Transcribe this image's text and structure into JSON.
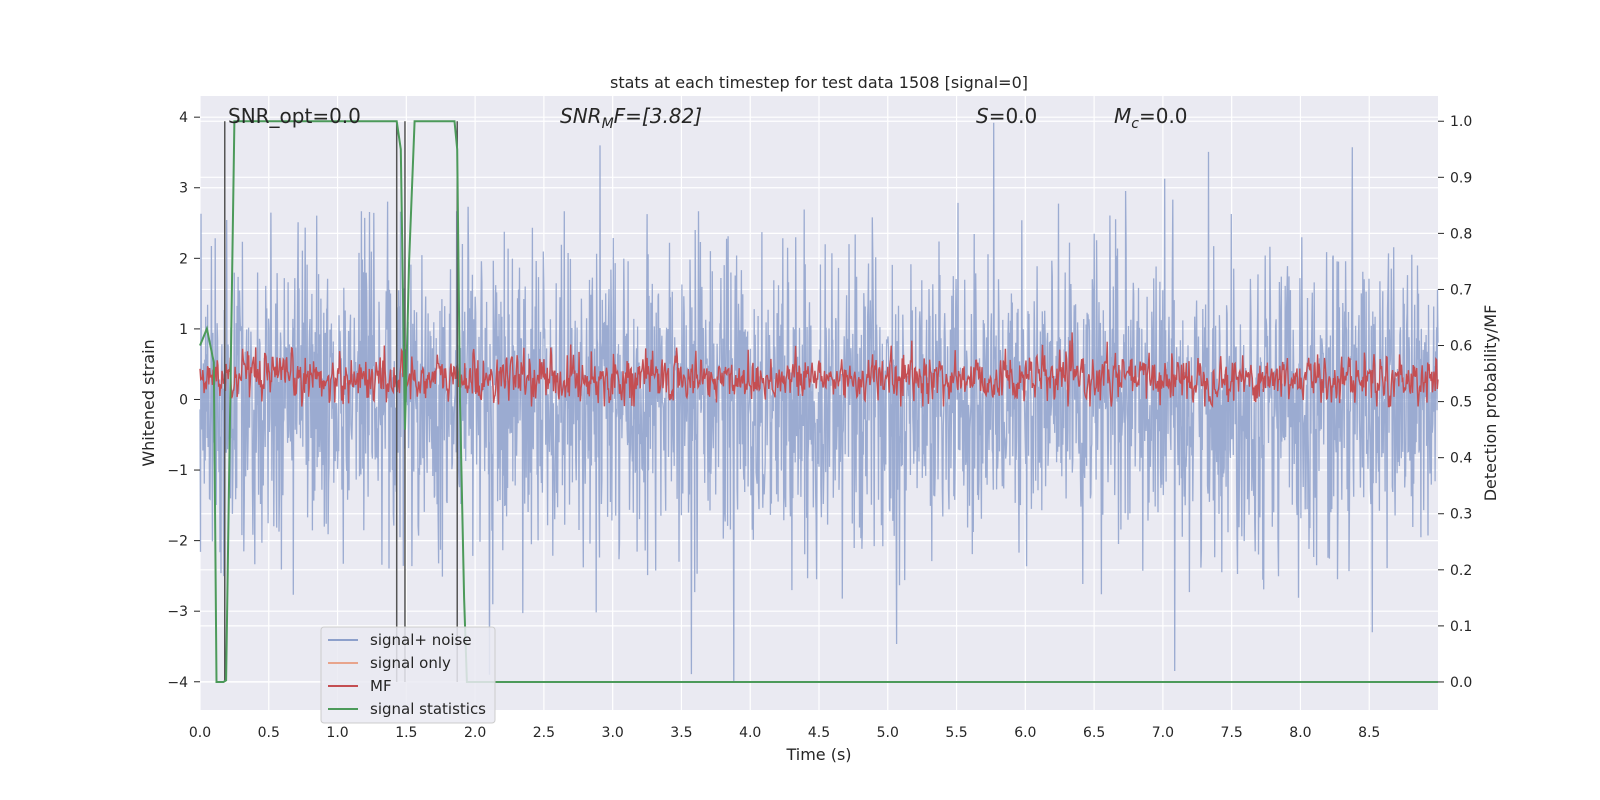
{
  "chart_data": {
    "type": "line",
    "title": "stats at each timestep for test data 1508 [signal=0]",
    "xlabel": "Time (s)",
    "ylabel_left": "Whitened strain",
    "ylabel_right": "Detection probability/MF",
    "xlim": [
      0,
      9.0
    ],
    "ylim_left": [
      -4.4,
      4.3
    ],
    "ylim_right": [
      -0.05,
      1.045
    ],
    "x_ticks": [
      "0.0",
      "0.5",
      "1.0",
      "1.5",
      "2.0",
      "2.5",
      "3.0",
      "3.5",
      "4.0",
      "4.5",
      "5.0",
      "5.5",
      "6.0",
      "6.5",
      "7.0",
      "7.5",
      "8.0",
      "8.5"
    ],
    "x_tick_values": [
      0,
      0.5,
      1.0,
      1.5,
      2.0,
      2.5,
      3.0,
      3.5,
      4.0,
      4.5,
      5.0,
      5.5,
      6.0,
      6.5,
      7.0,
      7.5,
      8.0,
      8.5
    ],
    "y_ticks_left": [
      "4",
      "3",
      "2",
      "1",
      "0",
      "−1",
      "−2",
      "−3",
      "−4"
    ],
    "y_tick_values_left": [
      4,
      3,
      2,
      1,
      0,
      -1,
      -2,
      -3,
      -4
    ],
    "y_ticks_right": [
      "1.0",
      "0.9",
      "0.8",
      "0.7",
      "0.6",
      "0.5",
      "0.4",
      "0.3",
      "0.2",
      "0.1",
      "0.0"
    ],
    "y_tick_values_right": [
      1.0,
      0.9,
      0.8,
      0.7,
      0.6,
      0.5,
      0.4,
      0.3,
      0.2,
      0.1,
      0.0
    ],
    "grid": true,
    "legend_position": "lower-left",
    "annotations": {
      "snr_opt": "SNR_opt=0.0",
      "snr_mf_base": "SNR",
      "snr_mf_sub": "M",
      "snr_mf_rest": "F=[3.82]",
      "s_italic": "S",
      "s_rest": "=0.0",
      "mc_italic": "M",
      "mc_sub": "c",
      "mc_rest": "=0.0"
    },
    "series": [
      {
        "name": "signal+ noise",
        "color": "#8da0cb",
        "noise_amplitude": 1.0,
        "extremes": [
          [
            5.77,
            3.92
          ],
          [
            3.88,
            -4.0
          ]
        ]
      },
      {
        "name": "signal only",
        "color": "#e8a48c",
        "values": [
          0
        ]
      },
      {
        "name": "MF",
        "color": "#c44e52",
        "mean": 0.3,
        "amplitude_range": [
          -0.1,
          0.95
        ]
      },
      {
        "name": "signal statistics",
        "color": "#4c9a5a",
        "x": [
          0.0,
          0.05,
          0.1,
          0.12,
          0.17,
          0.19,
          0.25,
          0.5,
          1.0,
          1.43,
          1.46,
          1.49,
          1.52,
          1.56,
          1.62,
          1.75,
          1.85,
          1.87,
          1.89,
          1.92,
          1.94,
          9.0
        ],
        "y": [
          0.6,
          0.63,
          0.57,
          0.0,
          0.0,
          0.003,
          1.0,
          1.0,
          1.0,
          1.0,
          0.95,
          0.45,
          0.75,
          1.0,
          1.0,
          1.0,
          1.0,
          0.95,
          0.5,
          0.15,
          0.0,
          0.0
        ]
      }
    ],
    "vertical_markers": [
      0.18,
      1.43,
      1.49,
      1.87
    ]
  }
}
